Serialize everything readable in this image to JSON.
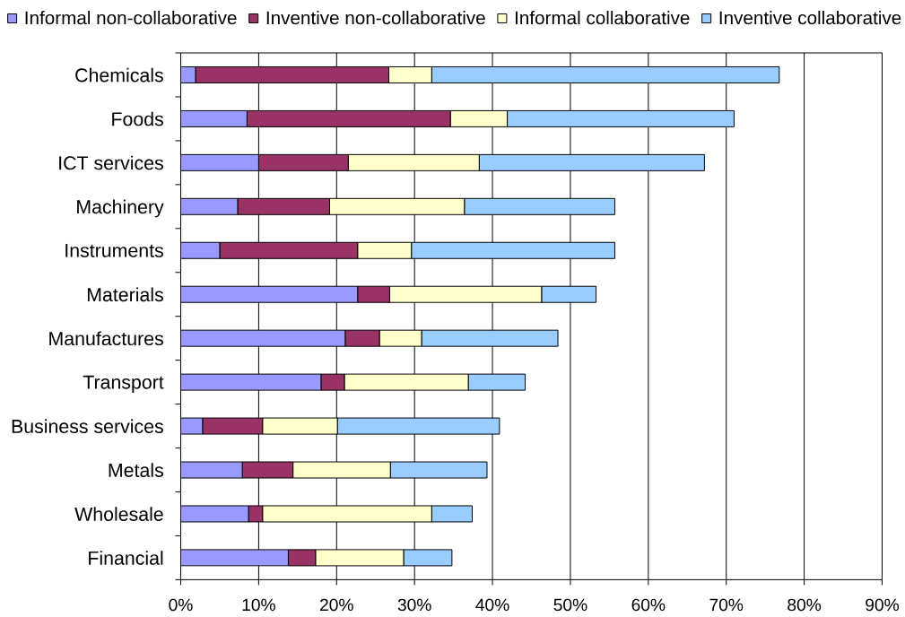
{
  "chart_data": {
    "type": "bar",
    "orientation": "horizontal",
    "stacked": true,
    "categories": [
      "Chemicals",
      "Foods",
      "ICT services",
      "Machinery",
      "Instruments",
      "Materials",
      "Manufactures",
      "Transport",
      "Business services",
      "Metals",
      "Wholesale",
      "Financial"
    ],
    "series": [
      {
        "name": "Informal non-collaborative",
        "color": "#9999ff",
        "values": [
          1.9,
          8.5,
          10.0,
          7.3,
          5.0,
          22.7,
          21.1,
          18.0,
          2.8,
          7.9,
          8.7,
          13.8
        ]
      },
      {
        "name": "Inventive non-collaborative",
        "color": "#993366",
        "values": [
          24.8,
          26.1,
          11.5,
          11.8,
          17.7,
          4.1,
          4.4,
          3.0,
          7.7,
          6.5,
          1.8,
          3.5
        ]
      },
      {
        "name": "Informal collaborative",
        "color": "#ffffcc",
        "values": [
          5.5,
          7.3,
          16.8,
          17.3,
          6.9,
          19.5,
          5.4,
          15.9,
          9.6,
          12.5,
          21.7,
          11.3
        ]
      },
      {
        "name": "Inventive collaborative",
        "color": "#99ccff",
        "values": [
          44.6,
          29.1,
          28.9,
          19.3,
          26.1,
          7.0,
          17.5,
          7.3,
          20.8,
          12.4,
          5.2,
          6.2
        ]
      }
    ],
    "xlim": [
      0,
      90
    ],
    "xticks": [
      {
        "value": 0,
        "label": "0%"
      },
      {
        "value": 10,
        "label": "10%"
      },
      {
        "value": 20,
        "label": "20%"
      },
      {
        "value": 30,
        "label": "30%"
      },
      {
        "value": 40,
        "label": "40%"
      },
      {
        "value": 50,
        "label": "50%"
      },
      {
        "value": 60,
        "label": "60%"
      },
      {
        "value": 70,
        "label": "70%"
      },
      {
        "value": 80,
        "label": "80%"
      },
      {
        "value": 90,
        "label": "90%"
      }
    ],
    "grid": "x",
    "legend": "top"
  }
}
